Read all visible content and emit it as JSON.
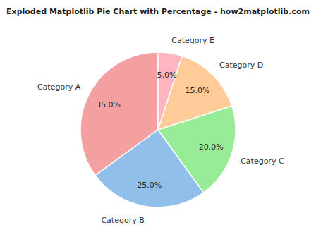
{
  "chart_data": {
    "type": "pie",
    "title": "Exploded Matplotlib Pie Chart with Percentage - how2matplotlib.com",
    "categories": [
      "Category A",
      "Category B",
      "Category C",
      "Category D",
      "Category E"
    ],
    "values": [
      35,
      25,
      20,
      15,
      5
    ],
    "value_labels": [
      "35.0%",
      "25.0%",
      "20.0%",
      "15.0%",
      "5.0%"
    ],
    "colors": [
      "#F4A0A0",
      "#90BFEA",
      "#98EC98",
      "#FFCC99",
      "#FFB6C1"
    ],
    "data_labels": true
  }
}
